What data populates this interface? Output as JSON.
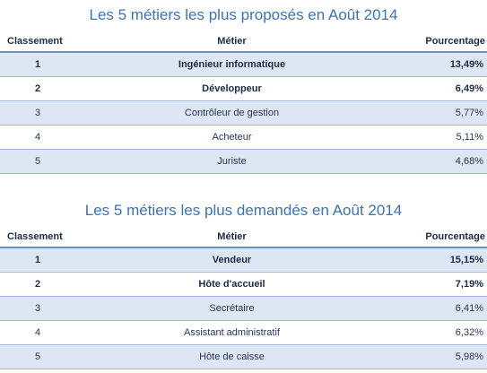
{
  "tables": [
    {
      "title": "Les 5 métiers les plus proposés en Août 2014",
      "headers": {
        "rank": "Classement",
        "job": "Métier",
        "pct": "Pourcentage"
      },
      "rows": [
        {
          "rank": "1",
          "job": "Ingénieur informatique",
          "pct": "13,49%"
        },
        {
          "rank": "2",
          "job": "Développeur",
          "pct": "6,49%"
        },
        {
          "rank": "3",
          "job": "Contrôleur de gestion",
          "pct": "5,77%"
        },
        {
          "rank": "4",
          "job": "Acheteur",
          "pct": "5,11%"
        },
        {
          "rank": "5",
          "job": "Juriste",
          "pct": "4,68%"
        }
      ]
    },
    {
      "title": "Les 5 métiers les plus demandés en Août 2014",
      "headers": {
        "rank": "Classement",
        "job": "Métier",
        "pct": "Pourcentage"
      },
      "rows": [
        {
          "rank": "1",
          "job": "Vendeur",
          "pct": "15,15%"
        },
        {
          "rank": "2",
          "job": "Hôte d'accueil",
          "pct": "7,19%"
        },
        {
          "rank": "3",
          "job": "Secrétaire",
          "pct": "6,41%"
        },
        {
          "rank": "4",
          "job": "Assistant administratif",
          "pct": "6,32%"
        },
        {
          "rank": "5",
          "job": "Hôte de caisse",
          "pct": "5,98%"
        }
      ]
    }
  ],
  "colors": {
    "title": "#3a73b8",
    "shaded_row": "#dde6f3",
    "border": "#6f8fbf"
  }
}
